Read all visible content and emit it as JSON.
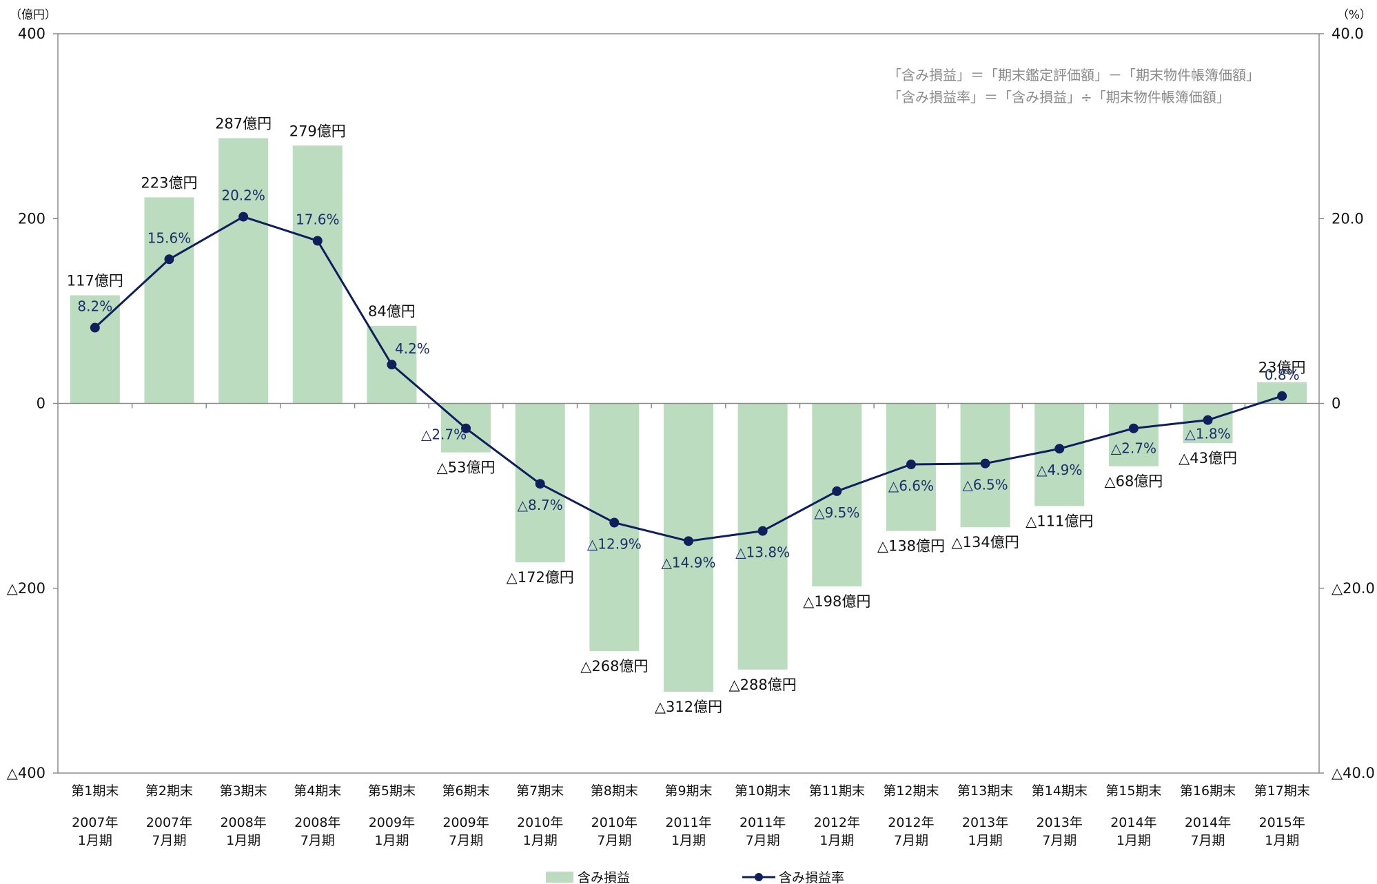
{
  "chart_data": {
    "type": "bar+line",
    "left_unit": "（億円）",
    "right_unit": "（%）",
    "left_axis": {
      "ylim": [
        -400,
        400
      ],
      "ticks": [
        400,
        200,
        0,
        -200,
        -400
      ],
      "tick_labels": [
        "400",
        "200",
        "0",
        "△200",
        "△400"
      ]
    },
    "right_axis": {
      "ylim": [
        -40,
        40
      ],
      "ticks": [
        40,
        20,
        0,
        -20,
        -40
      ],
      "tick_labels": [
        "40.0",
        "20.0",
        "0",
        "△20.0",
        "△40.0"
      ]
    },
    "categories": [
      {
        "period": "第1期末",
        "year": "2007年",
        "half": "1月期"
      },
      {
        "period": "第2期末",
        "year": "2007年",
        "half": "7月期"
      },
      {
        "period": "第3期末",
        "year": "2008年",
        "half": "1月期"
      },
      {
        "period": "第4期末",
        "year": "2008年",
        "half": "7月期"
      },
      {
        "period": "第5期末",
        "year": "2009年",
        "half": "1月期"
      },
      {
        "period": "第6期末",
        "year": "2009年",
        "half": "7月期"
      },
      {
        "period": "第7期末",
        "year": "2010年",
        "half": "1月期"
      },
      {
        "period": "第8期末",
        "year": "2010年",
        "half": "7月期"
      },
      {
        "period": "第9期末",
        "year": "2011年",
        "half": "1月期"
      },
      {
        "period": "第10期末",
        "year": "2011年",
        "half": "7月期"
      },
      {
        "period": "第11期末",
        "year": "2012年",
        "half": "1月期"
      },
      {
        "period": "第12期末",
        "year": "2012年",
        "half": "7月期"
      },
      {
        "period": "第13期末",
        "year": "2013年",
        "half": "1月期"
      },
      {
        "period": "第14期末",
        "year": "2013年",
        "half": "7月期"
      },
      {
        "period": "第15期末",
        "year": "2014年",
        "half": "1月期"
      },
      {
        "period": "第16期末",
        "year": "2014年",
        "half": "7月期"
      },
      {
        "period": "第17期末",
        "year": "2015年",
        "half": "1月期"
      }
    ],
    "series": [
      {
        "name": "含み損益",
        "type": "bar",
        "axis": "left",
        "color": "#bcdcbf",
        "values": [
          117,
          223,
          287,
          279,
          84,
          -53,
          -172,
          -268,
          -312,
          -288,
          -198,
          -138,
          -134,
          -111,
          -68,
          -43,
          23
        ],
        "labels": [
          "117億円",
          "223億円",
          "287億円",
          "279億円",
          "84億円",
          "△53億円",
          "△172億円",
          "△268億円",
          "△312億円",
          "△288億円",
          "△198億円",
          "△138億円",
          "△134億円",
          "△111億円",
          "△68億円",
          "△43億円",
          "23億円"
        ]
      },
      {
        "name": "含み損益率",
        "type": "line",
        "axis": "right",
        "color": "#0f1f5c",
        "values": [
          8.2,
          15.6,
          20.2,
          17.6,
          4.2,
          -2.7,
          -8.7,
          -12.9,
          -14.9,
          -13.8,
          -9.5,
          -6.6,
          -6.5,
          -4.9,
          -2.7,
          -1.8,
          0.8
        ],
        "labels": [
          "8.2%",
          "15.6%",
          "20.2%",
          "17.6%",
          "4.2%",
          "△2.7%",
          "△8.7%",
          "△12.9%",
          "△14.9%",
          "△13.8%",
          "△9.5%",
          "△6.6%",
          "△6.5%",
          "△4.9%",
          "△2.7%",
          "△1.8%",
          "0.8%"
        ]
      }
    ],
    "notes": [
      "「含み損益」＝「期末鑑定評価額」－「期末物件帳簿価額」",
      "「含み損益率」＝「含み損益」÷「期末物件帳簿価額」"
    ],
    "grid": false,
    "legend_position": "bottom-center"
  }
}
